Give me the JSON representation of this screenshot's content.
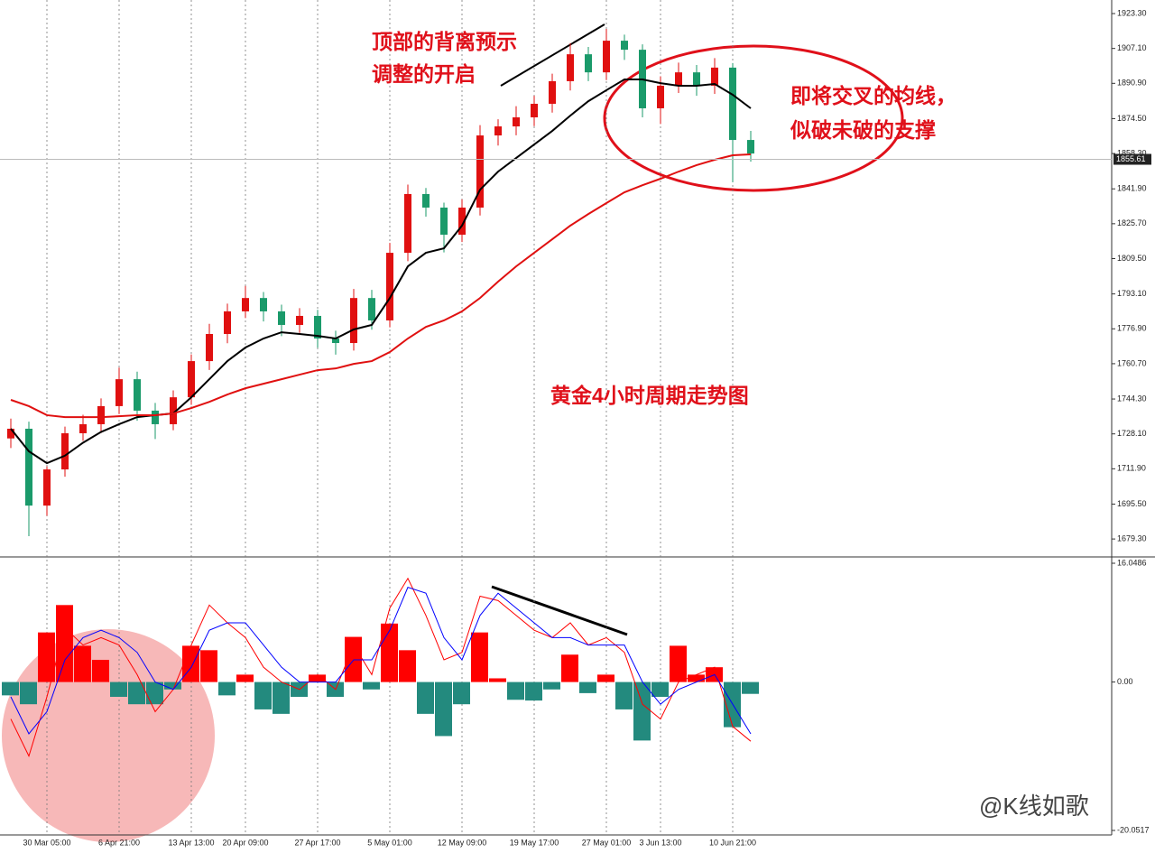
{
  "chart_data": [
    {
      "type": "candlestick",
      "categories": [
        null,
        null,
        "30 Mar 05:00",
        null,
        null,
        null,
        "6 Apr 21:00",
        null,
        null,
        null,
        "13 Apr 13:00",
        null,
        null,
        "20 Apr 09:00",
        null,
        null,
        null,
        "27 Apr 17:00",
        null,
        null,
        null,
        "5 May 01:00",
        null,
        null,
        null,
        "12 May 09:00",
        null,
        null,
        null,
        "19 May 17:00",
        null,
        null,
        null,
        "27 May 01:00",
        null,
        null,
        "3 Jun 13:00",
        null,
        null,
        null,
        "10 Jun 21:00",
        null
      ],
      "open": [
        1726.0,
        1730.5,
        1694.8,
        1711.6,
        1728.4,
        1732.6,
        1741.0,
        1753.5,
        1738.9,
        1732.6,
        1745.1,
        1761.9,
        1774.5,
        1785.0,
        1791.2,
        1785.0,
        1778.7,
        1782.9,
        1772.4,
        1770.3,
        1791.2,
        1780.8,
        1812.2,
        1839.5,
        1833.2,
        1820.6,
        1833.2,
        1866.7,
        1870.9,
        1875.1,
        1881.4,
        1891.9,
        1904.4,
        1896.0,
        1910.7,
        1906.5,
        1879.3,
        1889.8,
        1896.0,
        1889.8,
        1898.2,
        1864.6
      ],
      "high": [
        1735.2,
        1733.8,
        1713.0,
        1731.5,
        1737.0,
        1744.6,
        1758.9,
        1757.0,
        1742.5,
        1748.3,
        1765.0,
        1779.2,
        1788.6,
        1796.8,
        1794.0,
        1788.1,
        1786.5,
        1785.7,
        1776.0,
        1795.4,
        1795.0,
        1816.8,
        1843.9,
        1842.3,
        1835.5,
        1837.0,
        1871.5,
        1874.2,
        1880.3,
        1885.1,
        1895.4,
        1909.6,
        1907.8,
        1916.2,
        1913.5,
        1909.0,
        1894.2,
        1900.5,
        1899.4,
        1902.6,
        1900.3,
        1868.8
      ],
      "low": [
        1721.5,
        1680.6,
        1690.1,
        1708.2,
        1724.9,
        1728.5,
        1737.3,
        1734.2,
        1725.7,
        1729.8,
        1741.6,
        1757.8,
        1770.2,
        1781.9,
        1780.3,
        1773.5,
        1775.0,
        1768.1,
        1764.9,
        1766.8,
        1776.5,
        1777.6,
        1808.3,
        1829.0,
        1812.4,
        1817.2,
        1829.5,
        1862.0,
        1866.8,
        1871.0,
        1877.3,
        1887.6,
        1891.9,
        1892.4,
        1901.8,
        1875.1,
        1872.0,
        1886.4,
        1885.1,
        1886.0,
        1845.0,
        1854.5
      ],
      "close": [
        1730.5,
        1694.8,
        1711.6,
        1728.4,
        1732.6,
        1741.0,
        1753.5,
        1738.9,
        1732.6,
        1745.1,
        1761.9,
        1774.5,
        1785.0,
        1791.2,
        1785.0,
        1778.7,
        1782.9,
        1772.4,
        1770.3,
        1791.2,
        1780.8,
        1812.2,
        1839.5,
        1833.2,
        1820.6,
        1833.2,
        1866.7,
        1870.9,
        1875.1,
        1881.4,
        1891.9,
        1904.4,
        1896.0,
        1910.7,
        1906.5,
        1879.3,
        1889.8,
        1896.0,
        1889.8,
        1898.2,
        1864.6,
        1858.3
      ],
      "up_color": "#e01010",
      "down_color": "#1a9a6a",
      "series": [
        {
          "color": "#000000",
          "values": [
            1730.5,
            1720.0,
            1714.5,
            1718.0,
            1724.0,
            1729.0,
            1732.6,
            1735.9,
            1736.8,
            1737.6,
            1745.1,
            1753.5,
            1761.9,
            1768.2,
            1772.4,
            1775.3,
            1774.5,
            1773.6,
            1772.4,
            1776.6,
            1778.7,
            1791.2,
            1805.9,
            1812.2,
            1814.3,
            1824.8,
            1841.5,
            1849.9,
            1856.2,
            1862.5,
            1868.8,
            1875.9,
            1882.6,
            1887.7,
            1892.7,
            1892.7,
            1891.0,
            1889.8,
            1889.8,
            1890.6,
            1885.6,
            1879.3
          ]
        },
        {
          "color": "#e01010",
          "values": [
            1743.9,
            1741.0,
            1736.8,
            1735.9,
            1735.9,
            1735.9,
            1736.3,
            1736.8,
            1736.8,
            1737.6,
            1740.1,
            1743.0,
            1746.4,
            1749.3,
            1751.4,
            1753.5,
            1755.6,
            1757.7,
            1758.5,
            1760.6,
            1761.9,
            1766.1,
            1772.4,
            1777.8,
            1780.8,
            1785.0,
            1791.2,
            1798.8,
            1805.9,
            1812.2,
            1818.5,
            1824.8,
            1830.2,
            1835.3,
            1840.3,
            1843.6,
            1846.6,
            1849.9,
            1852.9,
            1855.4,
            1857.5,
            1857.9
          ]
        }
      ],
      "ylim": [
        1671.8,
        1929.6
      ],
      "yticks": [
        {
          "value": 1923.3,
          "label": "1923.30"
        },
        {
          "value": 1907.1,
          "label": "1907.10"
        },
        {
          "value": 1890.9,
          "label": "1890.90"
        },
        {
          "value": 1874.5,
          "label": "1874.50"
        },
        {
          "value": 1858.3,
          "label": "1858.30"
        },
        {
          "value": 1841.9,
          "label": "1841.90"
        },
        {
          "value": 1825.7,
          "label": "1825.70"
        },
        {
          "value": 1809.5,
          "label": "1809.50"
        },
        {
          "value": 1793.1,
          "label": "1793.10"
        },
        {
          "value": 1776.9,
          "label": "1776.90"
        },
        {
          "value": 1760.7,
          "label": "1760.70"
        },
        {
          "value": 1744.3,
          "label": "1744.30"
        },
        {
          "value": 1728.1,
          "label": "1728.10"
        },
        {
          "value": 1711.9,
          "label": "1711.90"
        },
        {
          "value": 1695.5,
          "label": "1695.50"
        },
        {
          "value": 1679.3,
          "label": "1679.30"
        }
      ],
      "current_price": {
        "value": 1855.61,
        "label": "1855.61"
      },
      "annotations": [
        "顶部的背离预示",
        "调整的开启",
        "即将交叉的均线，",
        "似破未破的支撑",
        "黄金4小时周期走势图"
      ]
    },
    {
      "type": "bar",
      "values": [
        -1.8,
        -3.0,
        6.7,
        10.4,
        4.9,
        3.0,
        -2.0,
        -3.0,
        -3.0,
        -1.0,
        4.9,
        4.3,
        -1.8,
        1.0,
        -3.7,
        -4.3,
        -2.0,
        1.0,
        -2.0,
        6.1,
        -1.0,
        7.9,
        4.3,
        -4.3,
        -7.3,
        -3.0,
        6.7,
        0.5,
        -2.4,
        -2.5,
        -1.0,
        3.7,
        -1.5,
        1.0,
        -3.7,
        -7.9,
        -2.0,
        4.9,
        1.0,
        2.0,
        -6.1,
        -1.6
      ],
      "up_color": "#ff0000",
      "down_color": "#238a7e",
      "series": [
        {
          "color": "#ff0000",
          "values": [
            -5,
            -10,
            -2,
            7.3,
            5,
            6,
            5,
            1,
            -4,
            -1,
            5,
            10.4,
            8,
            6,
            2,
            0,
            -1,
            1,
            -1,
            5,
            1,
            10,
            14,
            9,
            3,
            4,
            11.6,
            11,
            9,
            7,
            6,
            8,
            5,
            6,
            4,
            -3,
            -5,
            0,
            1,
            2,
            -6,
            -8
          ]
        },
        {
          "color": "#0000ff",
          "values": [
            -2,
            -7,
            -4,
            3,
            6,
            7,
            6,
            4,
            0,
            -1,
            2,
            7,
            8,
            8,
            5,
            2,
            0,
            0,
            0,
            3,
            3,
            7,
            12.8,
            12,
            6,
            3,
            9,
            12,
            10,
            8,
            6,
            6,
            5,
            5,
            5,
            0,
            -3,
            -1,
            0,
            1,
            -3,
            -7
          ]
        }
      ],
      "ylim": [
        -20.66,
        16.78
      ],
      "yticks": [
        {
          "value": 16.0486,
          "label": "16.0486"
        },
        {
          "value": 0,
          "label": "0.00"
        },
        {
          "value": -20.0517,
          "label": "-20.0517"
        }
      ]
    }
  ],
  "watermark": "@K线如歌"
}
